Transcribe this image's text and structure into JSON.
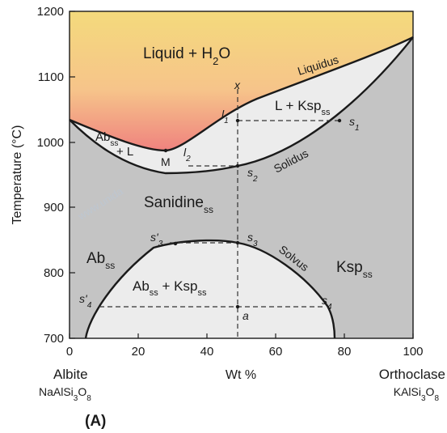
{
  "diagram": {
    "axes": {
      "y_title": "Temperature (°C)",
      "y_ticks": [
        "700",
        "800",
        "900",
        "1000",
        "1100",
        "1200"
      ],
      "x_ticks": [
        "0",
        "20",
        "40",
        "60",
        "80",
        "100"
      ],
      "x_title": "Wt %"
    },
    "endmembers": {
      "left_name": "Albite",
      "left_formula": "NaAlSi3O8",
      "right_name": "Orthoclase",
      "right_formula": "KAlSi3O8"
    },
    "fields": {
      "liquid_h2o": "Liquid + H2O",
      "l_ksp": "L + Ksp",
      "ab_l_1": "Abss",
      "ab_l_2": "+ L",
      "sanidine": "Sanidine",
      "ab": "Ab",
      "ksp": "Ksp",
      "ab_ksp": "Abss + Kspss",
      "ss": "ss"
    },
    "curves": {
      "liquidus": "Liquidus",
      "solidus": "Solidus",
      "solvus": "Solvus"
    },
    "points": {
      "M": "M",
      "x": "x",
      "l1": "l1",
      "l2": "l2",
      "s1": "s1",
      "s2": "s2",
      "s3": "s3",
      "s3p": "s'3",
      "s4": "s4",
      "s4p": "s'4",
      "a": "a"
    },
    "panel_label": "(A)",
    "watermark": "www.unida",
    "colors": {
      "solid_field": "#c4c4c4",
      "two_phase": "#ececec",
      "liquid_top": "#f4d97c",
      "liquid_low": "#f08a84",
      "outline": "#1a1a1a"
    }
  }
}
